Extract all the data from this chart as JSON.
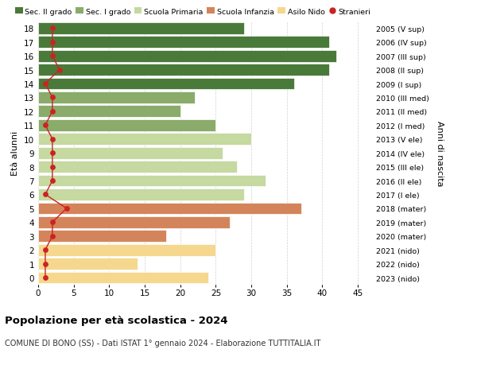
{
  "ages": [
    0,
    1,
    2,
    3,
    4,
    5,
    6,
    7,
    8,
    9,
    10,
    11,
    12,
    13,
    14,
    15,
    16,
    17,
    18
  ],
  "right_labels": [
    "2023 (nido)",
    "2022 (nido)",
    "2021 (nido)",
    "2020 (mater)",
    "2019 (mater)",
    "2018 (mater)",
    "2017 (I ele)",
    "2016 (II ele)",
    "2015 (III ele)",
    "2014 (IV ele)",
    "2013 (V ele)",
    "2012 (I med)",
    "2011 (II med)",
    "2010 (III med)",
    "2009 (I sup)",
    "2008 (II sup)",
    "2007 (III sup)",
    "2006 (IV sup)",
    "2005 (V sup)"
  ],
  "values": [
    24,
    14,
    25,
    18,
    27,
    37,
    29,
    32,
    28,
    26,
    30,
    25,
    20,
    22,
    36,
    41,
    42,
    41,
    29
  ],
  "stranieri": [
    1,
    1,
    1,
    2,
    2,
    4,
    1,
    2,
    2,
    2,
    2,
    1,
    2,
    2,
    1,
    3,
    2,
    2,
    2
  ],
  "bar_colors": [
    "#f5d78e",
    "#f5d78e",
    "#f5d78e",
    "#d4845a",
    "#d4845a",
    "#d4845a",
    "#c5d9a0",
    "#c5d9a0",
    "#c5d9a0",
    "#c5d9a0",
    "#c5d9a0",
    "#8aab6a",
    "#8aab6a",
    "#8aab6a",
    "#4a7a3a",
    "#4a7a3a",
    "#4a7a3a",
    "#4a7a3a",
    "#4a7a3a"
  ],
  "legend_labels": [
    "Sec. II grado",
    "Sec. I grado",
    "Scuola Primaria",
    "Scuola Infanzia",
    "Asilo Nido",
    "Stranieri"
  ],
  "legend_colors": [
    "#4a7a3a",
    "#8aab6a",
    "#c5d9a0",
    "#d4845a",
    "#f5d78e",
    "#cc2222"
  ],
  "ylabel": "Età alunni",
  "right_ylabel": "Anni di nascita",
  "title": "Popolazione per età scolastica - 2024",
  "subtitle": "COMUNE DI BONO (SS) - Dati ISTAT 1° gennaio 2024 - Elaborazione TUTTITALIA.IT",
  "xlim": [
    0,
    47
  ],
  "background_color": "#ffffff",
  "stranieri_color": "#cc2222"
}
